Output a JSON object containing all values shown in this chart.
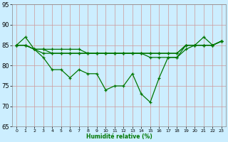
{
  "series": [
    {
      "x": [
        0,
        1,
        2,
        3,
        4,
        5,
        6,
        7,
        8,
        9,
        10,
        11,
        12,
        13,
        14,
        15,
        16,
        17,
        18,
        19,
        20,
        21,
        22,
        23
      ],
      "y": [
        85,
        87,
        84,
        82,
        79,
        79,
        77,
        79,
        78,
        78,
        74,
        75,
        75,
        78,
        73,
        71,
        77,
        82,
        82,
        85,
        85,
        87,
        85,
        86
      ]
    },
    {
      "x": [
        0,
        1,
        2,
        3,
        4,
        5,
        6,
        7,
        8,
        9,
        10,
        11,
        12,
        13,
        14,
        15,
        16,
        17,
        18,
        19,
        20,
        21,
        22,
        23
      ],
      "y": [
        85,
        85,
        84,
        84,
        84,
        84,
        84,
        84,
        83,
        83,
        83,
        83,
        83,
        83,
        83,
        83,
        83,
        83,
        83,
        85,
        85,
        85,
        85,
        86
      ]
    },
    {
      "x": [
        0,
        1,
        2,
        3,
        4,
        5,
        6,
        7,
        8,
        9,
        10,
        11,
        12,
        13,
        14,
        15,
        16,
        17,
        18,
        19,
        20,
        21,
        22,
        23
      ],
      "y": [
        85,
        85,
        84,
        83,
        83,
        83,
        83,
        83,
        83,
        83,
        83,
        83,
        83,
        83,
        83,
        82,
        82,
        82,
        82,
        84,
        85,
        85,
        85,
        86
      ]
    },
    {
      "x": [
        0,
        1,
        2,
        3,
        4,
        5,
        6,
        7,
        8,
        9,
        10,
        11,
        12,
        13,
        14,
        15,
        16,
        17,
        18,
        19,
        20,
        21,
        22,
        23
      ],
      "y": [
        85,
        85,
        84,
        84,
        83,
        83,
        83,
        83,
        83,
        83,
        83,
        83,
        83,
        83,
        83,
        83,
        83,
        83,
        83,
        85,
        85,
        85,
        85,
        86
      ]
    }
  ],
  "xlabel": "Humidité relative (%)",
  "xlim": [
    -0.5,
    23.5
  ],
  "ylim": [
    65,
    95
  ],
  "yticks": [
    65,
    70,
    75,
    80,
    85,
    90,
    95
  ],
  "xtick_labels": [
    "0",
    "1",
    "2",
    "3",
    "4",
    "5",
    "6",
    "7",
    "8",
    "9",
    "10",
    "11",
    "12",
    "13",
    "14",
    "15",
    "16",
    "17",
    "18",
    "19",
    "20",
    "21",
    "22",
    "23"
  ],
  "bg_color": "#cceeff",
  "grid_color": "#cc9999",
  "line_color": "#007700",
  "tick_color": "#007700",
  "xlabel_color": "#007700",
  "spine_color": "#888888",
  "ytick_fontsize": 6,
  "xtick_fontsize": 4.5,
  "xlabel_fontsize": 5.5,
  "linewidth": 0.9,
  "markersize": 3.0,
  "markeredgewidth": 0.9
}
